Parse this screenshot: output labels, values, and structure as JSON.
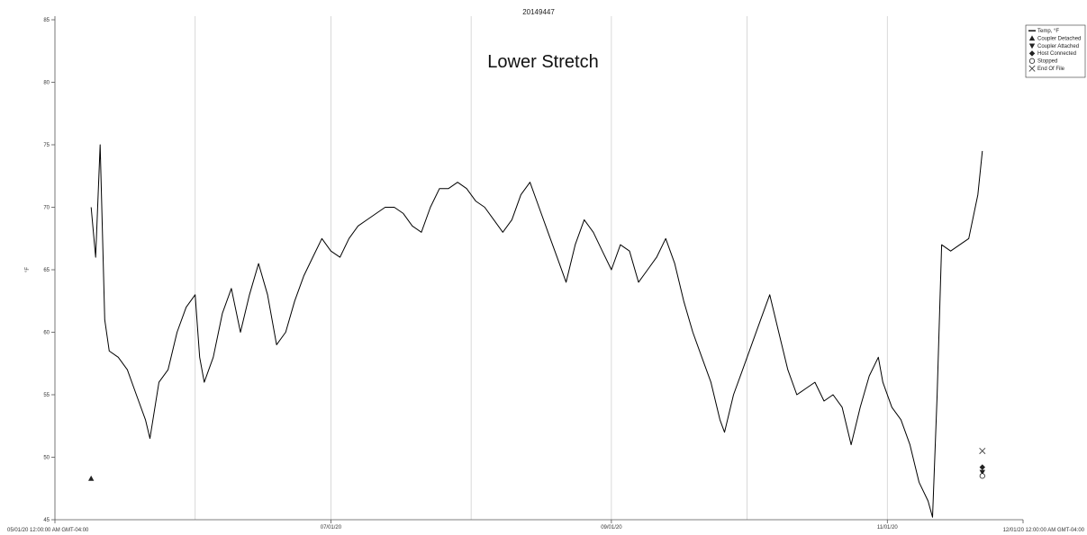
{
  "chart_data": {
    "type": "line",
    "title": "20149447",
    "annotation": "Lower Stretch",
    "ylabel": "°F",
    "xlabel": "",
    "ylim": [
      45,
      85
    ],
    "yticks": [
      45,
      50,
      55,
      60,
      65,
      70,
      75,
      80,
      85
    ],
    "x_range": [
      "2020-05-01",
      "2020-12-01"
    ],
    "x_start_label": "05/01/20 12:00:00 AM GMT-04:00",
    "x_end_label": "12/01/20 12:00:00 AM GMT-04:00",
    "x_ticks": [
      {
        "date": "2020-07-01",
        "label": "07/01/20"
      },
      {
        "date": "2020-09-01",
        "label": "09/01/20"
      },
      {
        "date": "2020-11-01",
        "label": "11/01/20"
      }
    ],
    "gridlines_x": [
      "2020-06-01",
      "2020-07-01",
      "2020-08-01",
      "2020-09-01",
      "2020-10-01",
      "2020-11-01"
    ],
    "grid": true,
    "legend_position": "top-right",
    "legend": [
      {
        "symbol": "line",
        "label": "Temp, °F"
      },
      {
        "symbol": "triangle-up",
        "label": "Coupler Detached"
      },
      {
        "symbol": "triangle-down",
        "label": "Coupler Attached"
      },
      {
        "symbol": "diamond",
        "label": "Host Connected"
      },
      {
        "symbol": "circle-open",
        "label": "Stopped"
      },
      {
        "symbol": "x",
        "label": "End Of File"
      }
    ],
    "series": [
      {
        "name": "Temp, °F",
        "color": "#000000",
        "points": [
          [
            "2020-05-09",
            70
          ],
          [
            "2020-05-10",
            66
          ],
          [
            "2020-05-11",
            75
          ],
          [
            "2020-05-12",
            61
          ],
          [
            "2020-05-13",
            58.5
          ],
          [
            "2020-05-15",
            58
          ],
          [
            "2020-05-17",
            57
          ],
          [
            "2020-05-19",
            55
          ],
          [
            "2020-05-21",
            53
          ],
          [
            "2020-05-22",
            51.5
          ],
          [
            "2020-05-24",
            56
          ],
          [
            "2020-05-26",
            57
          ],
          [
            "2020-05-28",
            60
          ],
          [
            "2020-05-30",
            62
          ],
          [
            "2020-06-01",
            63
          ],
          [
            "2020-06-02",
            58
          ],
          [
            "2020-06-03",
            56
          ],
          [
            "2020-06-05",
            58
          ],
          [
            "2020-06-07",
            61.5
          ],
          [
            "2020-06-09",
            63.5
          ],
          [
            "2020-06-11",
            60
          ],
          [
            "2020-06-13",
            63
          ],
          [
            "2020-06-15",
            65.5
          ],
          [
            "2020-06-17",
            63
          ],
          [
            "2020-06-19",
            59
          ],
          [
            "2020-06-21",
            60
          ],
          [
            "2020-06-23",
            62.5
          ],
          [
            "2020-06-25",
            64.5
          ],
          [
            "2020-06-27",
            66
          ],
          [
            "2020-06-29",
            67.5
          ],
          [
            "2020-07-01",
            66.5
          ],
          [
            "2020-07-03",
            66
          ],
          [
            "2020-07-05",
            67.5
          ],
          [
            "2020-07-07",
            68.5
          ],
          [
            "2020-07-09",
            69
          ],
          [
            "2020-07-11",
            69.5
          ],
          [
            "2020-07-13",
            70
          ],
          [
            "2020-07-15",
            70
          ],
          [
            "2020-07-17",
            69.5
          ],
          [
            "2020-07-19",
            68.5
          ],
          [
            "2020-07-21",
            68
          ],
          [
            "2020-07-23",
            70
          ],
          [
            "2020-07-25",
            71.5
          ],
          [
            "2020-07-27",
            71.5
          ],
          [
            "2020-07-29",
            72
          ],
          [
            "2020-07-31",
            71.5
          ],
          [
            "2020-08-02",
            70.5
          ],
          [
            "2020-08-04",
            70
          ],
          [
            "2020-08-06",
            69
          ],
          [
            "2020-08-08",
            68
          ],
          [
            "2020-08-10",
            69
          ],
          [
            "2020-08-12",
            71
          ],
          [
            "2020-08-14",
            72
          ],
          [
            "2020-08-16",
            70
          ],
          [
            "2020-08-18",
            68
          ],
          [
            "2020-08-20",
            66
          ],
          [
            "2020-08-22",
            64
          ],
          [
            "2020-08-24",
            67
          ],
          [
            "2020-08-26",
            69
          ],
          [
            "2020-08-28",
            68
          ],
          [
            "2020-08-30",
            66.5
          ],
          [
            "2020-09-01",
            65
          ],
          [
            "2020-09-03",
            67
          ],
          [
            "2020-09-05",
            66.5
          ],
          [
            "2020-09-07",
            64
          ],
          [
            "2020-09-09",
            65
          ],
          [
            "2020-09-11",
            66
          ],
          [
            "2020-09-13",
            67.5
          ],
          [
            "2020-09-15",
            65.5
          ],
          [
            "2020-09-17",
            62.5
          ],
          [
            "2020-09-19",
            60
          ],
          [
            "2020-09-21",
            58
          ],
          [
            "2020-09-23",
            56
          ],
          [
            "2020-09-25",
            53
          ],
          [
            "2020-09-26",
            52
          ],
          [
            "2020-09-28",
            55
          ],
          [
            "2020-09-30",
            57
          ],
          [
            "2020-10-02",
            59
          ],
          [
            "2020-10-04",
            61
          ],
          [
            "2020-10-06",
            63
          ],
          [
            "2020-10-08",
            60
          ],
          [
            "2020-10-10",
            57
          ],
          [
            "2020-10-12",
            55
          ],
          [
            "2020-10-14",
            55.5
          ],
          [
            "2020-10-16",
            56
          ],
          [
            "2020-10-18",
            54.5
          ],
          [
            "2020-10-20",
            55
          ],
          [
            "2020-10-22",
            54
          ],
          [
            "2020-10-24",
            51
          ],
          [
            "2020-10-26",
            54
          ],
          [
            "2020-10-28",
            56.5
          ],
          [
            "2020-10-30",
            58
          ],
          [
            "2020-10-31",
            56
          ],
          [
            "2020-11-02",
            54
          ],
          [
            "2020-11-04",
            53
          ],
          [
            "2020-11-06",
            51
          ],
          [
            "2020-11-08",
            48
          ],
          [
            "2020-11-10",
            46.5
          ],
          [
            "2020-11-11",
            45.2
          ],
          [
            "2020-11-12",
            55
          ],
          [
            "2020-11-13",
            67
          ],
          [
            "2020-11-15",
            66.5
          ],
          [
            "2020-11-17",
            67
          ],
          [
            "2020-11-19",
            67.5
          ],
          [
            "2020-11-21",
            71
          ],
          [
            "2020-11-22",
            74.5
          ]
        ]
      }
    ],
    "markers": [
      {
        "symbol": "triangle-up",
        "label": "Coupler Detached",
        "date": "2020-05-09",
        "y": 48.3
      },
      {
        "symbol": "x",
        "label": "End Of File",
        "date": "2020-11-22",
        "y": 50.5
      },
      {
        "symbol": "diamond",
        "label": "Host Connected",
        "date": "2020-11-22",
        "y": 49.2
      },
      {
        "symbol": "triangle-down",
        "label": "Coupler Attached",
        "date": "2020-11-22",
        "y": 48.8
      },
      {
        "symbol": "circle-open",
        "label": "Stopped",
        "date": "2020-11-22",
        "y": 48.5
      }
    ]
  }
}
